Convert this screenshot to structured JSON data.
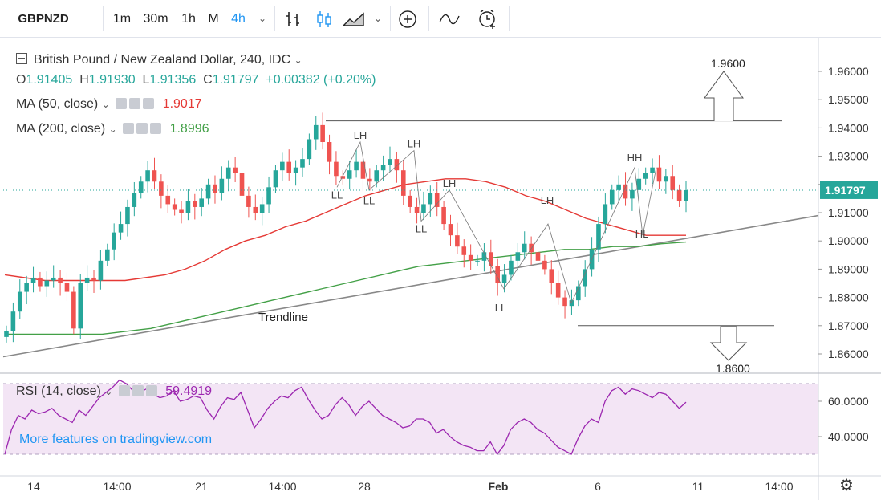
{
  "toolbar": {
    "symbol": "GBPNZD",
    "intervals": [
      "1m",
      "30m",
      "1h",
      "M",
      "4h"
    ],
    "active_interval": "4h",
    "icons": [
      "bar-style-icon",
      "candle-style-icon",
      "area-style-icon",
      "chevron-down-icon",
      "add-compare-icon",
      "indicators-icon",
      "alert-icon"
    ]
  },
  "legend": {
    "title": "British Pound / New Zealand Dollar, 240, IDC",
    "ohlc": {
      "o_label": "O",
      "o": "1.91405",
      "h_label": "H",
      "h": "1.91930",
      "l_label": "L",
      "l": "1.91356",
      "c_label": "C",
      "c": "1.91797",
      "change": "+0.00382 (+0.20%)"
    },
    "ma50": {
      "label": "MA (50, close)",
      "value": "1.9017",
      "color": "#e53935"
    },
    "ma200": {
      "label": "MA (200, close)",
      "value": "1.8996",
      "color": "#43a047"
    },
    "rsi": {
      "label": "RSI (14, close)",
      "value": "59.4919",
      "color": "#9c27b0"
    }
  },
  "watermark": "More features on tradingview.com",
  "chart_data": [
    {
      "type": "candlestick",
      "title": "British Pound / New Zealand Dollar, 240, IDC",
      "ylim": [
        1.855,
        1.968
      ],
      "y_ticks": [
        "1.96000",
        "1.95000",
        "1.94000",
        "1.93000",
        "1.92000",
        "1.91000",
        "1.90000",
        "1.89000",
        "1.88000",
        "1.87000",
        "1.86000"
      ],
      "x_ticks": [
        "14",
        "14:00",
        "21",
        "14:00",
        "28",
        "Feb",
        "6",
        "11",
        "14:00"
      ],
      "last_price": "1.91797",
      "close_path": [
        1.868,
        1.875,
        1.882,
        1.885,
        1.887,
        1.884,
        1.886,
        1.887,
        1.885,
        1.882,
        1.869,
        1.885,
        1.887,
        1.886,
        1.893,
        1.897,
        1.903,
        1.906,
        1.912,
        1.917,
        1.921,
        1.925,
        1.921,
        1.916,
        1.913,
        1.911,
        1.91,
        1.914,
        1.912,
        1.915,
        1.92,
        1.917,
        1.922,
        1.926,
        1.924,
        1.916,
        1.912,
        1.91,
        1.913,
        1.919,
        1.925,
        1.928,
        1.924,
        1.926,
        1.929,
        1.936,
        1.941,
        1.935,
        1.928,
        1.923,
        1.922,
        1.925,
        1.928,
        1.922,
        1.921,
        1.925,
        1.927,
        1.929,
        1.925,
        1.916,
        1.912,
        1.91,
        1.913,
        1.917,
        1.912,
        1.906,
        1.902,
        1.898,
        1.895,
        1.893,
        1.893,
        1.896,
        1.891,
        1.885,
        1.888,
        1.893,
        1.896,
        1.899,
        1.896,
        1.893,
        1.89,
        1.885,
        1.88,
        1.877,
        1.879,
        1.884,
        1.89,
        1.897,
        1.906,
        1.913,
        1.918,
        1.92,
        1.915,
        1.918,
        1.922,
        1.924,
        1.926,
        1.921,
        1.923,
        1.918,
        1.914,
        1.91797
      ],
      "ma50_path": [
        1.888,
        1.887,
        1.886,
        1.886,
        1.886,
        1.886,
        1.886,
        1.887,
        1.888,
        1.89,
        1.893,
        1.897,
        1.9,
        1.902,
        1.905,
        1.907,
        1.91,
        1.913,
        1.916,
        1.918,
        1.92,
        1.921,
        1.922,
        1.922,
        1.921,
        1.919,
        1.916,
        1.914,
        1.911,
        1.908,
        1.906,
        1.904,
        1.902,
        1.902,
        1.902
      ],
      "ma200_path": [
        1.867,
        1.867,
        1.867,
        1.867,
        1.867,
        1.868,
        1.869,
        1.871,
        1.873,
        1.875,
        1.877,
        1.879,
        1.881,
        1.883,
        1.885,
        1.887,
        1.889,
        1.891,
        1.892,
        1.893,
        1.894,
        1.895,
        1.896,
        1.897,
        1.897,
        1.898,
        1.898,
        1.899,
        1.8996
      ],
      "trendline": {
        "label": "Trendline",
        "start": 1.859,
        "end": 1.909
      },
      "annotations": [
        {
          "text": "LL",
          "price": 1.919
        },
        {
          "text": "LH",
          "price": 1.935
        },
        {
          "text": "LL",
          "price": 1.917
        },
        {
          "text": "LH",
          "price": 1.932
        },
        {
          "text": "LL",
          "price": 1.907
        },
        {
          "text": "LH",
          "price": 1.918
        },
        {
          "text": "LL",
          "price": 1.879
        },
        {
          "text": "LH",
          "price": 1.912
        },
        {
          "text": "HH",
          "price": 1.927
        },
        {
          "text": "HL",
          "price": 1.9
        }
      ],
      "resistance": {
        "level": 1.9425,
        "target_label": "1.9600"
      },
      "support": {
        "level": 1.87,
        "target_label": "1.8600"
      }
    },
    {
      "type": "line",
      "title": "RSI (14, close)",
      "ylim": [
        28,
        74
      ],
      "y_ticks": [
        "60.0000",
        "40.0000"
      ],
      "upper_band": 70,
      "lower_band": 30,
      "values": [
        30,
        44,
        52,
        50,
        55,
        53,
        54,
        56,
        52,
        50,
        48,
        55,
        52,
        57,
        62,
        65,
        68,
        72,
        70,
        66,
        65,
        67,
        64,
        62,
        63,
        66,
        60,
        61,
        63,
        62,
        55,
        50,
        57,
        62,
        61,
        65,
        55,
        45,
        50,
        56,
        60,
        63,
        62,
        66,
        68,
        61,
        55,
        50,
        52,
        58,
        62,
        58,
        52,
        57,
        60,
        56,
        52,
        50,
        48,
        45,
        46,
        50,
        50,
        48,
        42,
        44,
        40,
        37,
        35,
        34,
        32,
        32,
        37,
        30,
        35,
        44,
        48,
        50,
        48,
        44,
        42,
        38,
        34,
        32,
        30,
        39,
        46,
        50,
        48,
        60,
        66,
        68,
        64,
        67,
        66,
        64,
        62,
        65,
        64,
        60,
        56,
        59.49
      ]
    }
  ]
}
